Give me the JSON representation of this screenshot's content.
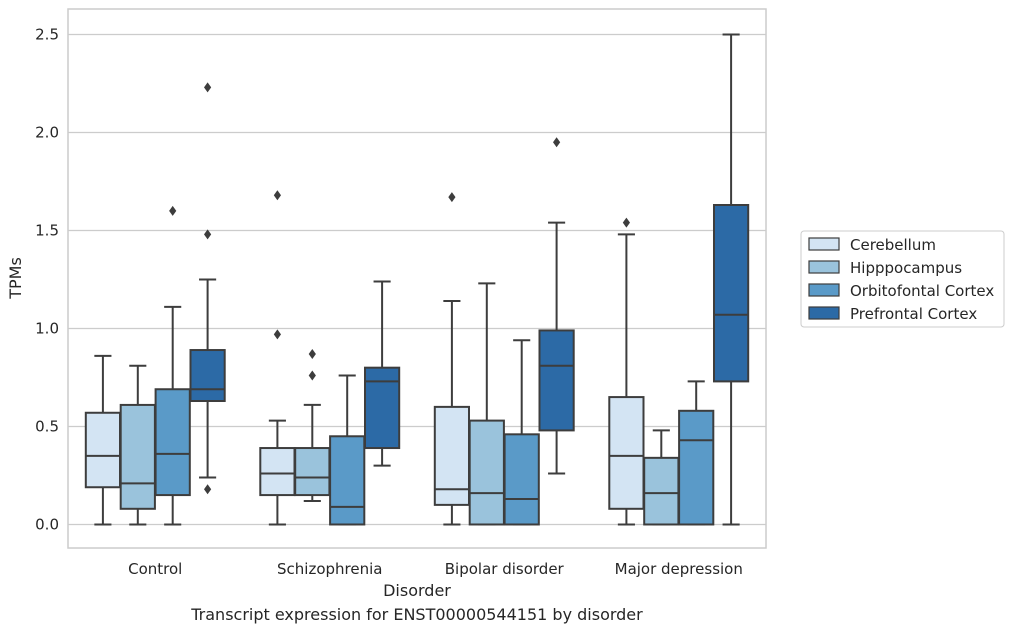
{
  "caption": "Transcript expression for ENST00000544151 by disorder",
  "chart_data": {
    "type": "box",
    "xlabel": "Disorder",
    "ylabel": "TPMs",
    "ylim": [
      -0.12,
      2.63
    ],
    "yticks": [
      "0.0",
      "0.5",
      "1.0",
      "1.5",
      "2.0",
      "2.5"
    ],
    "grid": "horizontal",
    "legend_position": "right",
    "categories": [
      "Control",
      "Schizophrenia",
      "Bipolar disorder",
      "Major depression"
    ],
    "series": [
      {
        "name": "Cerebellum",
        "color": "#d3e4f3",
        "boxes": [
          {
            "whisker_low": 0.0,
            "q1": 0.19,
            "median": 0.35,
            "q3": 0.57,
            "whisker_high": 0.86,
            "outliers": []
          },
          {
            "whisker_low": 0.0,
            "q1": 0.15,
            "median": 0.26,
            "q3": 0.39,
            "whisker_high": 0.53,
            "outliers": [
              0.97,
              1.68
            ]
          },
          {
            "whisker_low": 0.0,
            "q1": 0.1,
            "median": 0.18,
            "q3": 0.6,
            "whisker_high": 1.14,
            "outliers": [
              1.67
            ]
          },
          {
            "whisker_low": 0.0,
            "q1": 0.08,
            "median": 0.35,
            "q3": 0.65,
            "whisker_high": 1.48,
            "outliers": [
              1.54
            ]
          }
        ]
      },
      {
        "name": "Hipppocampus",
        "color": "#9ac3dc",
        "boxes": [
          {
            "whisker_low": 0.0,
            "q1": 0.08,
            "median": 0.21,
            "q3": 0.61,
            "whisker_high": 0.81,
            "outliers": []
          },
          {
            "whisker_low": 0.12,
            "q1": 0.15,
            "median": 0.24,
            "q3": 0.39,
            "whisker_high": 0.61,
            "outliers": [
              0.76,
              0.87
            ]
          },
          {
            "whisker_low": 0.0,
            "q1": 0.0,
            "median": 0.16,
            "q3": 0.53,
            "whisker_high": 1.23,
            "outliers": []
          },
          {
            "whisker_low": 0.0,
            "q1": 0.0,
            "median": 0.16,
            "q3": 0.34,
            "whisker_high": 0.48,
            "outliers": []
          }
        ]
      },
      {
        "name": "Orbitofontal Cortex",
        "color": "#5a9ac8",
        "boxes": [
          {
            "whisker_low": 0.0,
            "q1": 0.15,
            "median": 0.36,
            "q3": 0.69,
            "whisker_high": 1.11,
            "outliers": [
              1.6
            ]
          },
          {
            "whisker_low": 0.0,
            "q1": 0.0,
            "median": 0.09,
            "q3": 0.45,
            "whisker_high": 0.76,
            "outliers": []
          },
          {
            "whisker_low": 0.0,
            "q1": 0.0,
            "median": 0.13,
            "q3": 0.46,
            "whisker_high": 0.94,
            "outliers": []
          },
          {
            "whisker_low": 0.0,
            "q1": 0.0,
            "median": 0.43,
            "q3": 0.58,
            "whisker_high": 0.73,
            "outliers": []
          }
        ]
      },
      {
        "name": "Prefrontal Cortex",
        "color": "#2c6aa6",
        "boxes": [
          {
            "whisker_low": 0.24,
            "q1": 0.63,
            "median": 0.69,
            "q3": 0.89,
            "whisker_high": 1.25,
            "outliers": [
              0.18,
              1.48,
              2.23
            ]
          },
          {
            "whisker_low": 0.3,
            "q1": 0.39,
            "median": 0.73,
            "q3": 0.8,
            "whisker_high": 1.24,
            "outliers": []
          },
          {
            "whisker_low": 0.26,
            "q1": 0.48,
            "median": 0.81,
            "q3": 0.99,
            "whisker_high": 1.54,
            "outliers": [
              1.95
            ]
          },
          {
            "whisker_low": 0.0,
            "q1": 0.73,
            "median": 1.07,
            "q3": 1.63,
            "whisker_high": 2.5,
            "outliers": []
          }
        ]
      }
    ]
  }
}
